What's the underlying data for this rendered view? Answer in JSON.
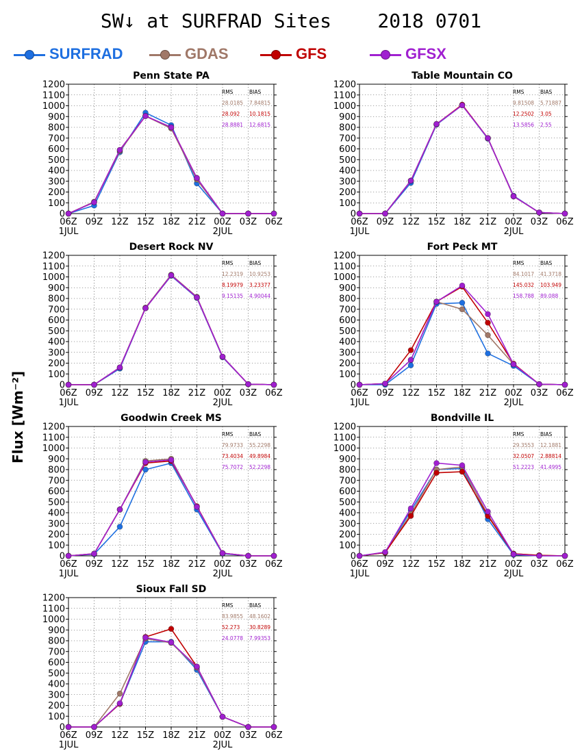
{
  "page_title": "SW↓ at SURFRAD Sites    2018 0701",
  "y_axis_label": "Flux [Wm⁻²]",
  "legend": [
    {
      "label": "SURFRAD",
      "color": "#1e6fe0"
    },
    {
      "label": "GDAS",
      "color": "#a07868"
    },
    {
      "label": "GFS",
      "color": "#c00000"
    },
    {
      "label": "GFSX",
      "color": "#a020d0"
    }
  ],
  "chart_data": [
    {
      "type": "line",
      "title": "Penn State PA",
      "categories": [
        "06Z",
        "09Z",
        "12Z",
        "15Z",
        "18Z",
        "21Z",
        "00Z",
        "03Z",
        "06Z"
      ],
      "date_labels": [
        "1JUL",
        "2JUL"
      ],
      "ylim": [
        0,
        1200
      ],
      "yticks": [
        0,
        100,
        200,
        300,
        400,
        500,
        600,
        700,
        800,
        900,
        1000,
        1100,
        1200
      ],
      "grid": true,
      "series": [
        {
          "name": "SURFRAD",
          "values": [
            0,
            75,
            570,
            935,
            820,
            280,
            0,
            0,
            0
          ]
        },
        {
          "name": "GDAS",
          "values": [
            0,
            110,
            580,
            905,
            790,
            315,
            0,
            0,
            0
          ]
        },
        {
          "name": "GFS",
          "values": [
            0,
            105,
            590,
            905,
            800,
            330,
            0,
            0,
            0
          ]
        },
        {
          "name": "GFSX",
          "values": [
            0,
            105,
            590,
            905,
            800,
            330,
            0,
            0,
            0
          ]
        }
      ],
      "stats": {
        "header": [
          "RMS",
          "BIAS"
        ],
        "rows": [
          [
            "28.0185",
            "7.84815"
          ],
          [
            "28.092",
            "10.1815"
          ],
          [
            "28.8881",
            "12.6815"
          ]
        ]
      }
    },
    {
      "type": "line",
      "title": "Table Mountain CO",
      "categories": [
        "06Z",
        "09Z",
        "12Z",
        "15Z",
        "18Z",
        "21Z",
        "00Z",
        "03Z",
        "06Z"
      ],
      "date_labels": [
        "1JUL",
        "2JUL"
      ],
      "ylim": [
        0,
        1200
      ],
      "yticks": [
        0,
        100,
        200,
        300,
        400,
        500,
        600,
        700,
        800,
        900,
        1000,
        1100,
        1200
      ],
      "grid": true,
      "series": [
        {
          "name": "SURFRAD",
          "values": [
            0,
            0,
            285,
            825,
            1005,
            695,
            165,
            10,
            0
          ]
        },
        {
          "name": "GDAS",
          "values": [
            0,
            0,
            305,
            830,
            1005,
            700,
            160,
            10,
            0
          ]
        },
        {
          "name": "GFS",
          "values": [
            0,
            0,
            305,
            830,
            1010,
            700,
            160,
            10,
            0
          ]
        },
        {
          "name": "GFSX",
          "values": [
            0,
            0,
            305,
            830,
            1005,
            700,
            160,
            10,
            0
          ]
        }
      ],
      "stats": {
        "header": [
          "RMS",
          "BIAS"
        ],
        "rows": [
          [
            "9.81508",
            "5.71887"
          ],
          [
            "12.2502",
            "3.05"
          ],
          [
            "13.5856",
            "2.55"
          ]
        ]
      }
    },
    {
      "type": "line",
      "title": "Desert Rock NV",
      "categories": [
        "06Z",
        "09Z",
        "12Z",
        "15Z",
        "18Z",
        "21Z",
        "00Z",
        "03Z",
        "06Z"
      ],
      "date_labels": [
        "1JUL",
        "2JUL"
      ],
      "ylim": [
        0,
        1200
      ],
      "yticks": [
        0,
        100,
        200,
        300,
        400,
        500,
        600,
        700,
        800,
        900,
        1000,
        1100,
        1200
      ],
      "grid": true,
      "series": [
        {
          "name": "SURFRAD",
          "values": [
            0,
            0,
            150,
            710,
            1010,
            805,
            255,
            5,
            0
          ]
        },
        {
          "name": "GDAS",
          "values": [
            0,
            0,
            160,
            715,
            1020,
            815,
            260,
            5,
            0
          ]
        },
        {
          "name": "GFS",
          "values": [
            0,
            0,
            160,
            710,
            1015,
            810,
            260,
            5,
            0
          ]
        },
        {
          "name": "GFSX",
          "values": [
            0,
            0,
            160,
            710,
            1015,
            810,
            260,
            5,
            0
          ]
        }
      ],
      "stats": {
        "header": [
          "RMS",
          "BIAS"
        ],
        "rows": [
          [
            "12.2319",
            "10.9253"
          ],
          [
            "8.19979",
            "3.23377"
          ],
          [
            "9.15135",
            "4.90044"
          ]
        ]
      }
    },
    {
      "type": "line",
      "title": "Fort Peck MT",
      "categories": [
        "06Z",
        "09Z",
        "12Z",
        "15Z",
        "18Z",
        "21Z",
        "00Z",
        "03Z",
        "06Z"
      ],
      "date_labels": [
        "1JUL",
        "2JUL"
      ],
      "ylim": [
        0,
        1200
      ],
      "yticks": [
        0,
        100,
        200,
        300,
        400,
        500,
        600,
        700,
        800,
        900,
        1000,
        1100,
        1200
      ],
      "grid": true,
      "series": [
        {
          "name": "SURFRAD",
          "values": [
            0,
            0,
            180,
            750,
            760,
            290,
            175,
            5,
            0
          ]
        },
        {
          "name": "GDAS",
          "values": [
            0,
            10,
            230,
            770,
            700,
            460,
            190,
            5,
            0
          ]
        },
        {
          "name": "GFS",
          "values": [
            0,
            10,
            320,
            770,
            910,
            575,
            195,
            5,
            0
          ]
        },
        {
          "name": "GFSX",
          "values": [
            0,
            10,
            230,
            770,
            920,
            655,
            190,
            5,
            0
          ]
        }
      ],
      "stats": {
        "header": [
          "RMS",
          "BIAS"
        ],
        "rows": [
          [
            "84.1017",
            "41.3718"
          ],
          [
            "145.032",
            "103.949"
          ],
          [
            "158.788",
            "89.088"
          ]
        ]
      }
    },
    {
      "type": "line",
      "title": "Goodwin Creek MS",
      "categories": [
        "06Z",
        "09Z",
        "12Z",
        "15Z",
        "18Z",
        "21Z",
        "00Z",
        "03Z",
        "06Z"
      ],
      "date_labels": [
        "1JUL",
        "2JUL"
      ],
      "ylim": [
        0,
        1200
      ],
      "yticks": [
        0,
        100,
        200,
        300,
        400,
        500,
        600,
        700,
        800,
        900,
        1000,
        1100,
        1200
      ],
      "grid": true,
      "series": [
        {
          "name": "SURFRAD",
          "values": [
            0,
            15,
            270,
            800,
            860,
            430,
            20,
            0,
            0
          ]
        },
        {
          "name": "GDAS",
          "values": [
            0,
            20,
            430,
            880,
            900,
            455,
            25,
            0,
            0
          ]
        },
        {
          "name": "GFS",
          "values": [
            0,
            20,
            430,
            860,
            880,
            460,
            25,
            0,
            0
          ]
        },
        {
          "name": "GFSX",
          "values": [
            0,
            20,
            430,
            870,
            890,
            455,
            25,
            0,
            0
          ]
        }
      ],
      "stats": {
        "header": [
          "RMS",
          "BIAS"
        ],
        "rows": [
          [
            "79.9733",
            "55.2298"
          ],
          [
            "73.4034",
            "49.8984"
          ],
          [
            "75.7072",
            "52.2298"
          ]
        ]
      }
    },
    {
      "type": "line",
      "title": "Bondville IL",
      "categories": [
        "06Z",
        "09Z",
        "12Z",
        "15Z",
        "18Z",
        "21Z",
        "00Z",
        "03Z",
        "06Z"
      ],
      "date_labels": [
        "1JUL",
        "2JUL"
      ],
      "ylim": [
        0,
        1200
      ],
      "yticks": [
        0,
        100,
        200,
        300,
        400,
        500,
        600,
        700,
        800,
        900,
        1000,
        1100,
        1200
      ],
      "grid": true,
      "series": [
        {
          "name": "SURFRAD",
          "values": [
            0,
            30,
            420,
            800,
            810,
            340,
            10,
            0,
            0
          ]
        },
        {
          "name": "GDAS",
          "values": [
            0,
            30,
            390,
            800,
            825,
            380,
            20,
            5,
            0
          ]
        },
        {
          "name": "GFS",
          "values": [
            0,
            30,
            370,
            770,
            780,
            370,
            20,
            5,
            0
          ]
        },
        {
          "name": "GFSX",
          "values": [
            0,
            35,
            440,
            860,
            840,
            410,
            15,
            0,
            0
          ]
        }
      ],
      "stats": {
        "header": [
          "RMS",
          "BIAS"
        ],
        "rows": [
          [
            "29.3553",
            "12.1881"
          ],
          [
            "32.0507",
            "2.88814"
          ],
          [
            "51.2223",
            "41.4995"
          ]
        ]
      }
    },
    {
      "type": "line",
      "title": "Sioux Fall SD",
      "categories": [
        "06Z",
        "09Z",
        "12Z",
        "15Z",
        "18Z",
        "21Z",
        "00Z",
        "03Z",
        "06Z"
      ],
      "date_labels": [
        "1JUL",
        "2JUL"
      ],
      "ylim": [
        0,
        1200
      ],
      "yticks": [
        0,
        100,
        200,
        300,
        400,
        500,
        600,
        700,
        800,
        900,
        1000,
        1100,
        1200
      ],
      "grid": true,
      "series": [
        {
          "name": "SURFRAD",
          "values": [
            0,
            0,
            215,
            790,
            790,
            530,
            95,
            0,
            0
          ]
        },
        {
          "name": "GDAS",
          "values": [
            0,
            0,
            310,
            820,
            780,
            550,
            95,
            0,
            0
          ]
        },
        {
          "name": "GFS",
          "values": [
            0,
            0,
            215,
            835,
            910,
            560,
            95,
            0,
            0
          ]
        },
        {
          "name": "GFSX",
          "values": [
            0,
            0,
            220,
            830,
            785,
            560,
            95,
            0,
            0
          ]
        }
      ],
      "stats": {
        "header": [
          "RMS",
          "BIAS"
        ],
        "rows": [
          [
            "83.9855",
            "48.1602"
          ],
          [
            "52.273",
            "30.8289"
          ],
          [
            "24.0778",
            "7.99353"
          ]
        ]
      }
    }
  ]
}
